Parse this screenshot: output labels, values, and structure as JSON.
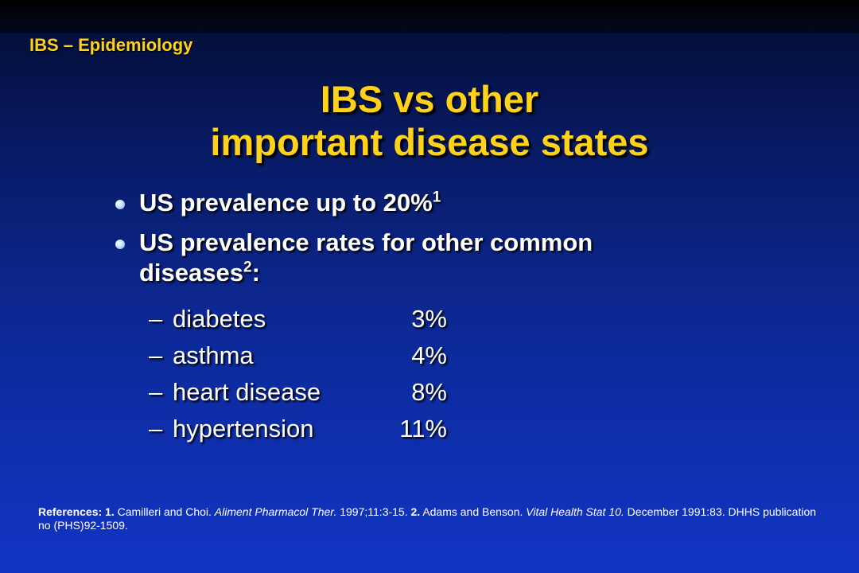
{
  "section_label": "IBS – Epidemiology",
  "title": {
    "line1": "IBS vs other",
    "line2": "important disease states"
  },
  "bullets": [
    {
      "text": "US prevalence up to 20%",
      "sup": "1"
    },
    {
      "text": "US prevalence rates for other common diseases",
      "sup": "2",
      "suffix": ":"
    }
  ],
  "diseases": [
    {
      "dash": "–",
      "name": "diabetes",
      "value": "3%"
    },
    {
      "dash": "–",
      "name": "asthma",
      "value": "4%"
    },
    {
      "dash": "–",
      "name": "heart disease",
      "value": "8%"
    },
    {
      "dash": "–",
      "name": "hypertension",
      "value": "11%"
    }
  ],
  "references": {
    "label": "References:",
    "ref1_num": "1.",
    "ref1_authors": "Camilleri and Choi.",
    "ref1_journal": "Aliment Pharmacol Ther.",
    "ref1_citation": "1997;11:3-15.",
    "ref2_num": "2.",
    "ref2_authors": "Adams and Benson.",
    "ref2_journal": "Vital Health Stat 10.",
    "ref2_citation": "December 1991:83. DHHS publication no (PHS)92-1509."
  },
  "colors": {
    "title": "#ffd21a",
    "text": "#ffffff",
    "background_top": "#020b2e",
    "background_bottom": "#1234c4"
  }
}
